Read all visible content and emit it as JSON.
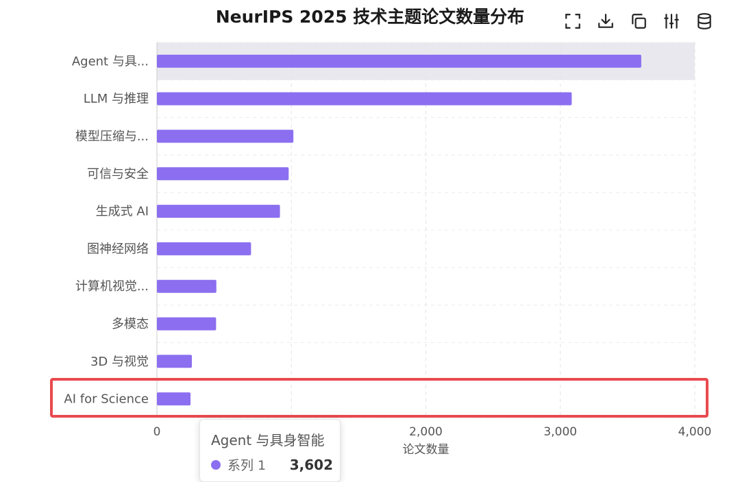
{
  "title": "NeurIPS 2025 技术主题论文数量分布",
  "toolbar": {
    "icons": [
      "fullscreen-icon",
      "download-icon",
      "copy-icon",
      "adjust-icon",
      "data-view-icon"
    ]
  },
  "colors": {
    "bar": "#8b6ff0",
    "highlight": "#e84a4f",
    "axis_hover_band": "#e9e8ee"
  },
  "chart_data": {
    "type": "bar",
    "orientation": "horizontal",
    "categories": [
      "AI for Science",
      "3D 与视觉",
      "多模态",
      "计算机视觉...",
      "图神经网络",
      "生成式 AI",
      "可信与安全",
      "模型压缩与...",
      "LLM 与推理",
      "Agent 与具..."
    ],
    "series": [
      {
        "name": "系列 1",
        "values": [
          250,
          260,
          440,
          442,
          700,
          915,
          980,
          1015,
          3085,
          3602
        ]
      }
    ],
    "xlabel": "论文数量",
    "ylabel": "",
    "xlim": [
      0,
      4000
    ],
    "xticks": [
      0,
      1000,
      2000,
      3000,
      4000
    ],
    "xtick_labels": [
      "0",
      "",
      "2,000",
      "3,000",
      "4,000"
    ],
    "grid": true,
    "highlighted_category": "Agent 与具..."
  },
  "tooltip": {
    "title": "Agent 与具身智能",
    "series": "系列 1",
    "value": "3,602"
  }
}
